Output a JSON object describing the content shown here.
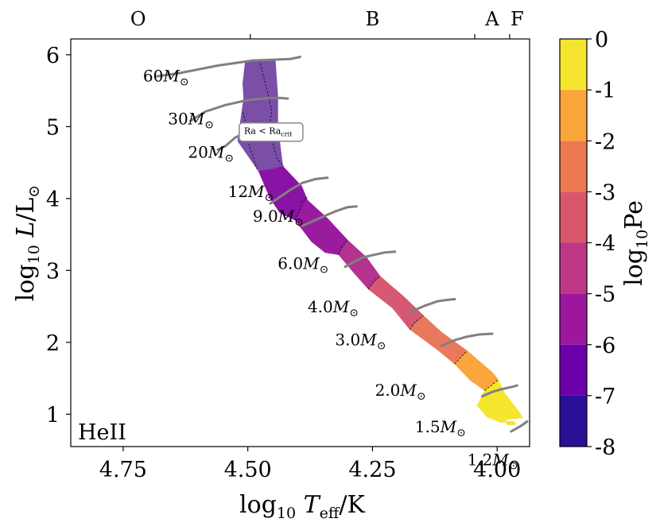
{
  "chart_data": {
    "type": "heatmap",
    "title": "",
    "xlabel": "log10 Teff/K",
    "ylabel": "log10 L/L⊙",
    "xlim": [
      4.855,
      3.935
    ],
    "ylim": [
      0.55,
      6.22
    ],
    "x_ticks": [
      {
        "value": 4.75,
        "label": "4.75"
      },
      {
        "value": 4.5,
        "label": "4.50"
      },
      {
        "value": 4.25,
        "label": "4.25"
      },
      {
        "value": 4.0,
        "label": "4.00"
      }
    ],
    "y_ticks": [
      {
        "value": 1,
        "label": "1"
      },
      {
        "value": 2,
        "label": "2"
      },
      {
        "value": 3,
        "label": "3"
      },
      {
        "value": 4,
        "label": "4"
      },
      {
        "value": 5,
        "label": "5"
      },
      {
        "value": 6,
        "label": "6"
      }
    ],
    "spectral_ticks": [
      4.495,
      4.045,
      3.975
    ],
    "spectral_classes": [
      {
        "label": "O",
        "x": 4.72
      },
      {
        "label": "B",
        "x": 4.25
      },
      {
        "label": "A",
        "x": 4.01
      },
      {
        "label": "F",
        "x": 3.96
      }
    ],
    "annotation_ion": "HeII",
    "annotation_box": {
      "main": "Ra < Ra",
      "sub": "crit",
      "x": 4.455,
      "y": 4.93
    },
    "colorbar": {
      "label": "log10 Pe",
      "min": -8,
      "max": 0,
      "tick_labels": [
        "0",
        "-1",
        "-2",
        "-3",
        "-4",
        "-5",
        "-6",
        "-7",
        "-8"
      ],
      "bands": [
        {
          "from": -8,
          "to": -7,
          "color": "#2a0f97"
        },
        {
          "from": -7,
          "to": -6,
          "color": "#6a00a8"
        },
        {
          "from": -6,
          "to": -5,
          "color": "#9c179e"
        },
        {
          "from": -5,
          "to": -4,
          "color": "#bd3786"
        },
        {
          "from": -4,
          "to": -3,
          "color": "#d8576b"
        },
        {
          "from": -3,
          "to": -2,
          "color": "#ed7953"
        },
        {
          "from": -2,
          "to": -1,
          "color": "#fba63c"
        },
        {
          "from": -1,
          "to": 0,
          "color": "#f6e52f"
        }
      ]
    },
    "region_segments": [
      {
        "pe": -5.2,
        "color": "#7b4fa8",
        "poly": [
          [
            4.505,
            5.9
          ],
          [
            4.445,
            5.93
          ],
          [
            4.44,
            5.42
          ],
          [
            4.44,
            5.0
          ],
          [
            4.43,
            4.45
          ],
          [
            4.455,
            4.4
          ],
          [
            4.478,
            4.38
          ],
          [
            4.52,
            4.8
          ],
          [
            4.508,
            5.4
          ],
          [
            4.51,
            5.6
          ]
        ]
      },
      {
        "pe": -5.6,
        "color": "#8a12a4",
        "poly": [
          [
            4.478,
            4.38
          ],
          [
            4.455,
            4.4
          ],
          [
            4.43,
            4.45
          ],
          [
            4.392,
            4.17
          ],
          [
            4.381,
            3.98
          ],
          [
            4.405,
            3.7
          ],
          [
            4.435,
            3.8
          ],
          [
            4.455,
            4.0
          ]
        ]
      },
      {
        "pe": -5.2,
        "color": "#9b1b9f",
        "poly": [
          [
            4.405,
            3.7
          ],
          [
            4.381,
            3.98
          ],
          [
            4.34,
            3.72
          ],
          [
            4.3,
            3.42
          ],
          [
            4.318,
            3.22
          ],
          [
            4.345,
            3.25
          ],
          [
            4.372,
            3.4
          ]
        ]
      },
      {
        "pe": -4.6,
        "color": "#b3338f",
        "poly": [
          [
            4.318,
            3.22
          ],
          [
            4.3,
            3.42
          ],
          [
            4.262,
            3.18
          ],
          [
            4.235,
            2.92
          ],
          [
            4.258,
            2.74
          ],
          [
            4.285,
            2.95
          ]
        ]
      },
      {
        "pe": -3.6,
        "color": "#d65872",
        "poly": [
          [
            4.258,
            2.74
          ],
          [
            4.235,
            2.92
          ],
          [
            4.185,
            2.62
          ],
          [
            4.148,
            2.37
          ],
          [
            4.175,
            2.18
          ],
          [
            4.21,
            2.48
          ]
        ]
      },
      {
        "pe": -3.0,
        "color": "#e9795d",
        "poly": [
          [
            4.175,
            2.18
          ],
          [
            4.148,
            2.37
          ],
          [
            4.11,
            2.13
          ],
          [
            4.06,
            1.88
          ],
          [
            4.085,
            1.7
          ],
          [
            4.12,
            1.9
          ]
        ]
      },
      {
        "pe": -1.5,
        "color": "#fba63c",
        "poly": [
          [
            4.085,
            1.7
          ],
          [
            4.06,
            1.88
          ],
          [
            4.01,
            1.58
          ],
          [
            3.998,
            1.48
          ],
          [
            4.025,
            1.33
          ],
          [
            4.055,
            1.48
          ]
        ]
      },
      {
        "pe": -0.6,
        "color": "#f6e52f",
        "poly": [
          [
            4.025,
            1.33
          ],
          [
            3.998,
            1.48
          ],
          [
            3.985,
            1.29
          ],
          [
            3.955,
            1.02
          ],
          [
            3.949,
            0.95
          ],
          [
            3.98,
            0.93
          ],
          [
            3.99,
            0.88
          ],
          [
            4.02,
            0.96
          ],
          [
            4.04,
            1.12
          ]
        ]
      },
      {
        "pe": -0.6,
        "color": "#f6e52f",
        "poly": [
          [
            3.985,
            0.9
          ],
          [
            3.968,
            0.9
          ],
          [
            3.962,
            0.86
          ],
          [
            3.978,
            0.85
          ]
        ]
      }
    ],
    "contour_lines": [
      [
        [
          4.475,
          5.88
        ],
        [
          4.462,
          5.52
        ],
        [
          4.452,
          5.22
        ],
        [
          4.458,
          4.95
        ],
        [
          4.441,
          4.55
        ],
        [
          4.428,
          4.45
        ]
      ],
      [
        [
          4.51,
          5.2
        ],
        [
          4.5,
          4.95
        ],
        [
          4.498,
          4.75
        ],
        [
          4.48,
          4.38
        ]
      ],
      [
        [
          4.405,
          3.7
        ],
        [
          4.396,
          3.83
        ],
        [
          4.392,
          3.95
        ],
        [
          4.381,
          4.02
        ]
      ],
      [
        [
          4.318,
          3.22
        ],
        [
          4.312,
          3.32
        ],
        [
          4.3,
          3.42
        ]
      ],
      [
        [
          4.258,
          2.74
        ],
        [
          4.248,
          2.84
        ],
        [
          4.235,
          2.92
        ]
      ],
      [
        [
          4.175,
          2.18
        ],
        [
          4.165,
          2.28
        ],
        [
          4.148,
          2.37
        ]
      ],
      [
        [
          4.085,
          1.7
        ],
        [
          4.072,
          1.8
        ],
        [
          4.06,
          1.88
        ]
      ],
      [
        [
          4.025,
          1.33
        ],
        [
          4.01,
          1.41
        ],
        [
          3.998,
          1.48
        ]
      ]
    ],
    "series": [
      {
        "name": "60M⊙",
        "label_pos": [
          4.71,
          5.63
        ],
        "x": [
          4.682,
          4.64,
          4.56,
          4.49,
          4.415,
          4.395
        ],
        "y": [
          5.7,
          5.74,
          5.85,
          5.92,
          5.94,
          5.97
        ]
      },
      {
        "name": "30M⊙",
        "label_pos": [
          4.66,
          5.03
        ],
        "x": [
          4.615,
          4.585,
          4.545,
          4.5,
          4.455,
          4.435,
          4.42
        ],
        "y": [
          5.08,
          5.21,
          5.3,
          5.37,
          5.4,
          5.4,
          5.39
        ]
      },
      {
        "name": "20M⊙",
        "label_pos": [
          4.62,
          4.57
        ],
        "x": [
          4.56,
          4.545,
          4.525,
          4.505,
          4.485,
          4.47
        ],
        "y": [
          4.68,
          4.73,
          4.85,
          4.91,
          4.97,
          5.02
        ]
      },
      {
        "name": "12M⊙",
        "label_pos": [
          4.54,
          4.02
        ],
        "x": [
          4.455,
          4.415,
          4.39,
          4.365,
          4.34
        ],
        "y": [
          3.93,
          4.12,
          4.22,
          4.27,
          4.29
        ]
      },
      {
        "name": "9.0M⊙",
        "label_pos": [
          4.49,
          3.68
        ],
        "x": [
          4.39,
          4.355,
          4.325,
          4.3,
          4.282
        ],
        "y": [
          3.62,
          3.73,
          3.82,
          3.88,
          3.89
        ]
      },
      {
        "name": "6.0M⊙",
        "label_pos": [
          4.44,
          3.02
        ],
        "x": [
          4.305,
          4.27,
          4.245,
          4.225,
          4.205
        ],
        "y": [
          3.05,
          3.18,
          3.22,
          3.25,
          3.26
        ]
      },
      {
        "name": "4.0M⊙",
        "label_pos": [
          4.38,
          2.42
        ],
        "x": [
          4.175,
          4.145,
          4.12,
          4.1,
          4.085
        ],
        "y": [
          2.42,
          2.51,
          2.57,
          2.59,
          2.6
        ]
      },
      {
        "name": "3.0M⊙",
        "label_pos": [
          4.325,
          1.96
        ],
        "x": [
          4.112,
          4.085,
          4.06,
          4.035,
          4.01
        ],
        "y": [
          1.95,
          2.03,
          2.08,
          2.11,
          2.12
        ]
      },
      {
        "name": "2.0M⊙",
        "label_pos": [
          4.245,
          1.26
        ],
        "x": [
          4.03,
          4.01,
          3.99,
          3.97,
          3.96
        ],
        "y": [
          1.25,
          1.31,
          1.35,
          1.38,
          1.4
        ]
      },
      {
        "name": "1.5M⊙",
        "label_pos": [
          4.165,
          0.75
        ],
        "x": [
          3.972,
          3.962,
          3.952,
          3.945,
          3.94,
          3.95
        ],
        "y": [
          0.76,
          0.8,
          0.84,
          0.87,
          0.9,
          0.85
        ]
      },
      {
        "name": "1.2M⊙",
        "label_pos": [
          4.06,
          0.29
        ],
        "x": [],
        "y": []
      }
    ]
  }
}
